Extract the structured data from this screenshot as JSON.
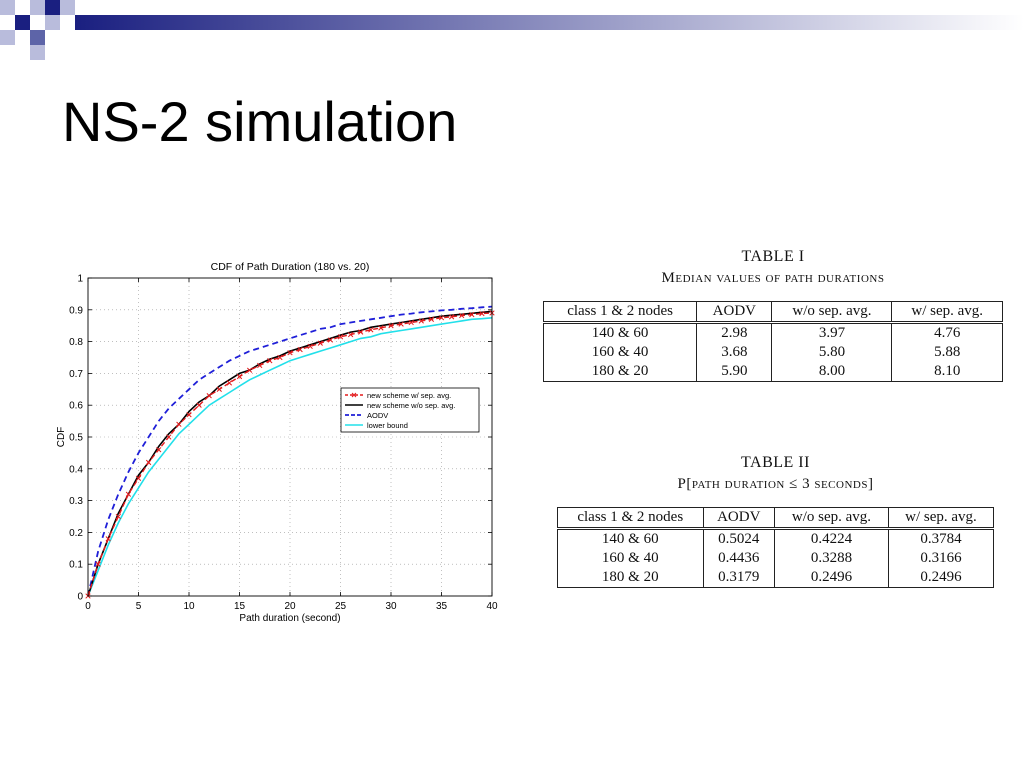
{
  "slide": {
    "title": "NS-2 simulation"
  },
  "colors": {
    "blue": "#1f1fb4",
    "deco_light": "#b9bcdc",
    "deco_mid": "#5d64a8"
  },
  "chart_data": {
    "type": "line",
    "title": "CDF of Path Duration (180 vs. 20)",
    "xlabel": "Path duration (second)",
    "ylabel": "CDF",
    "xlim": [
      0,
      40
    ],
    "ylim": [
      0,
      1
    ],
    "xticks": [
      0,
      5,
      10,
      15,
      20,
      25,
      30,
      35,
      40
    ],
    "yticks": [
      0,
      0.1,
      0.2,
      0.3,
      0.4,
      0.5,
      0.6,
      0.7,
      0.8,
      0.9,
      1
    ],
    "grid": true,
    "legend_position": "right",
    "x": [
      0,
      1,
      2,
      3,
      4,
      5,
      6,
      7,
      8,
      9,
      10,
      11,
      12,
      13,
      14,
      15,
      16,
      17,
      18,
      19,
      20,
      21,
      22,
      23,
      24,
      25,
      26,
      27,
      28,
      29,
      30,
      31,
      32,
      33,
      34,
      35,
      36,
      37,
      38,
      39,
      40
    ],
    "series": [
      {
        "name": "new scheme w/ sep. avg.",
        "color": "#e31a1c",
        "style": "dashed-marker",
        "values": [
          0,
          0.1,
          0.18,
          0.25,
          0.32,
          0.37,
          0.42,
          0.46,
          0.5,
          0.54,
          0.57,
          0.6,
          0.63,
          0.65,
          0.67,
          0.69,
          0.71,
          0.725,
          0.74,
          0.75,
          0.765,
          0.775,
          0.785,
          0.795,
          0.805,
          0.815,
          0.822,
          0.83,
          0.837,
          0.843,
          0.85,
          0.855,
          0.86,
          0.865,
          0.87,
          0.875,
          0.878,
          0.882,
          0.885,
          0.888,
          0.89
        ]
      },
      {
        "name": "new scheme w/o sep. avg.",
        "color": "#000000",
        "style": "solid",
        "values": [
          0,
          0.1,
          0.18,
          0.26,
          0.32,
          0.38,
          0.42,
          0.47,
          0.51,
          0.54,
          0.58,
          0.61,
          0.63,
          0.66,
          0.68,
          0.7,
          0.71,
          0.73,
          0.745,
          0.755,
          0.77,
          0.78,
          0.79,
          0.8,
          0.81,
          0.82,
          0.83,
          0.835,
          0.845,
          0.85,
          0.855,
          0.86,
          0.865,
          0.87,
          0.875,
          0.88,
          0.883,
          0.886,
          0.889,
          0.892,
          0.895
        ]
      },
      {
        "name": "AODV",
        "color": "#1f1fd8",
        "style": "dashed",
        "values": [
          0,
          0.14,
          0.24,
          0.32,
          0.39,
          0.45,
          0.5,
          0.55,
          0.59,
          0.62,
          0.65,
          0.68,
          0.7,
          0.72,
          0.74,
          0.755,
          0.77,
          0.78,
          0.79,
          0.8,
          0.81,
          0.82,
          0.83,
          0.84,
          0.845,
          0.855,
          0.86,
          0.865,
          0.87,
          0.875,
          0.88,
          0.885,
          0.888,
          0.892,
          0.895,
          0.898,
          0.9,
          0.903,
          0.905,
          0.908,
          0.91
        ]
      },
      {
        "name": "lower bound",
        "color": "#22e0ea",
        "style": "solid",
        "values": [
          0,
          0.08,
          0.16,
          0.23,
          0.29,
          0.34,
          0.39,
          0.43,
          0.47,
          0.51,
          0.54,
          0.57,
          0.6,
          0.62,
          0.64,
          0.66,
          0.68,
          0.695,
          0.71,
          0.725,
          0.74,
          0.75,
          0.76,
          0.77,
          0.78,
          0.79,
          0.8,
          0.81,
          0.815,
          0.825,
          0.83,
          0.835,
          0.84,
          0.845,
          0.85,
          0.855,
          0.86,
          0.865,
          0.87,
          0.872,
          0.875
        ]
      }
    ]
  },
  "table1": {
    "caption": "TABLE I",
    "subtitle": "Median values of path durations",
    "headers": [
      "class 1 & 2 nodes",
      "AODV",
      "w/o sep. avg.",
      "w/ sep. avg."
    ],
    "rows": [
      [
        "140 & 60",
        "2.98",
        "3.97",
        "4.76"
      ],
      [
        "160 & 40",
        "3.68",
        "5.80",
        "5.88"
      ],
      [
        "180 & 20",
        "5.90",
        "8.00",
        "8.10"
      ]
    ]
  },
  "table2": {
    "caption": "TABLE II",
    "subtitle": "P[path duration ≤ 3 seconds]",
    "headers": [
      "class 1 & 2 nodes",
      "AODV",
      "w/o sep. avg.",
      "w/ sep. avg."
    ],
    "rows": [
      [
        "140 & 60",
        "0.5024",
        "0.4224",
        "0.3784"
      ],
      [
        "160 & 40",
        "0.4436",
        "0.3288",
        "0.3166"
      ],
      [
        "180 & 20",
        "0.3179",
        "0.2496",
        "0.2496"
      ]
    ]
  }
}
